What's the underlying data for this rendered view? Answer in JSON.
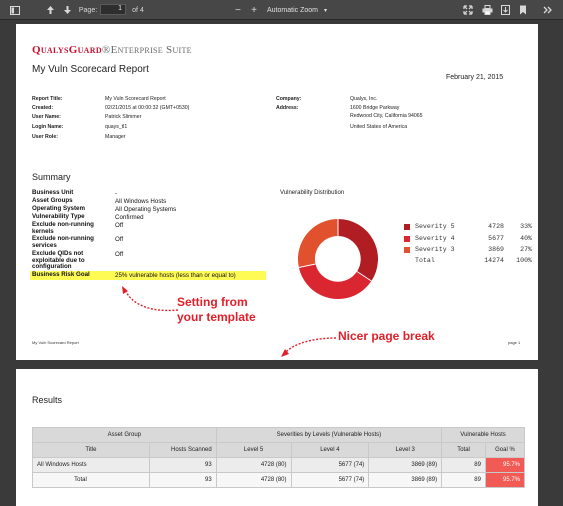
{
  "toolbar": {
    "page_label": "Page:",
    "page_value": "1",
    "page_total": "of 4",
    "zoom": "Automatic Zoom",
    "zoom_minus": "−",
    "zoom_plus": "+"
  },
  "report": {
    "logo_q": "Q",
    "logo_rest": "UALYS",
    "logo_g": "G",
    "logo_rest2": "UARD",
    "logo_suffix": "®Enterprise Suite",
    "title": "My Vuln Scorecard Report",
    "date": "February 21, 2015",
    "meta_left": [
      {
        "label": "Report Title:",
        "value": "My Vuln Scorecard Report"
      },
      {
        "label": "Created:",
        "value": "02/21/2015 at 00:00:32 (GMT+0530)"
      },
      {
        "label": "User Name:",
        "value": "Patrick Slimmer"
      },
      {
        "label": "Login Name:",
        "value": "quays_tl1"
      },
      {
        "label": "User Role:",
        "value": "Manager"
      }
    ],
    "meta_right": {
      "company_label": "Company:",
      "company_value": "Qualys, Inc.",
      "address_label": "Address:",
      "address_line1": "1600 Bridge Parkway",
      "address_line2": "Redwood City, California 94065",
      "address_line3": "United States of America"
    },
    "summary_heading": "Summary",
    "summary": [
      {
        "label": "Business Unit",
        "value": "-"
      },
      {
        "label": "Asset Groups",
        "value": "All Windows Hosts"
      },
      {
        "label": "Operating System",
        "value": "All Operating Systems"
      },
      {
        "label": "Vulnerability Type",
        "value": "Confirmed"
      },
      {
        "label": "Exclude non-running kernels",
        "value": "Off"
      },
      {
        "label": "Exclude non-running services",
        "value": "Off"
      },
      {
        "label": "Exclude QIDs not exploitable due to configuration",
        "value": "Off"
      },
      {
        "label": "Business Risk Goal",
        "value": "25% vulnerable hosts (less than or equal to)"
      }
    ],
    "vuln_dist_title": "Vulnerability Distribution",
    "legend": [
      {
        "name": "Severity 5",
        "count": "4728",
        "pct": "33%",
        "color": "#b01e24"
      },
      {
        "name": "Severity 4",
        "count": "5677",
        "pct": "40%",
        "color": "#d92630"
      },
      {
        "name": "Severity 3",
        "count": "3869",
        "pct": "27%",
        "color": "#e2512e"
      }
    ],
    "legend_total": {
      "name": "Total",
      "count": "14274",
      "pct": "100%"
    },
    "footer_left": "My Vuln Scorecard Report",
    "footer_right": "page 1"
  },
  "annotations": {
    "template_line1": "Setting from",
    "template_line2": "your template",
    "page_break": "Nicer page break",
    "color": "#e0202a"
  },
  "results": {
    "heading": "Results",
    "group_headers": [
      "Asset Group",
      "Severities by Levels (Vulnerable Hosts)",
      "Vulnerable Hosts"
    ],
    "columns": [
      "Title",
      "Hosts Scanned",
      "Level 5",
      "Level 4",
      "Level 3",
      "Total",
      "Goal %"
    ],
    "rows": [
      {
        "title": "All Windows Hosts",
        "hosts": "93",
        "l5": "4728 (80)",
        "l4": "5677 (74)",
        "l3": "3869 (89)",
        "total": "89",
        "goal": "95.7%"
      }
    ],
    "total_row": {
      "title": "Total",
      "hosts": "93",
      "l5": "4728 (80)",
      "l4": "5677 (74)",
      "l3": "3869 (89)",
      "total": "89",
      "goal": "95.7%"
    }
  }
}
